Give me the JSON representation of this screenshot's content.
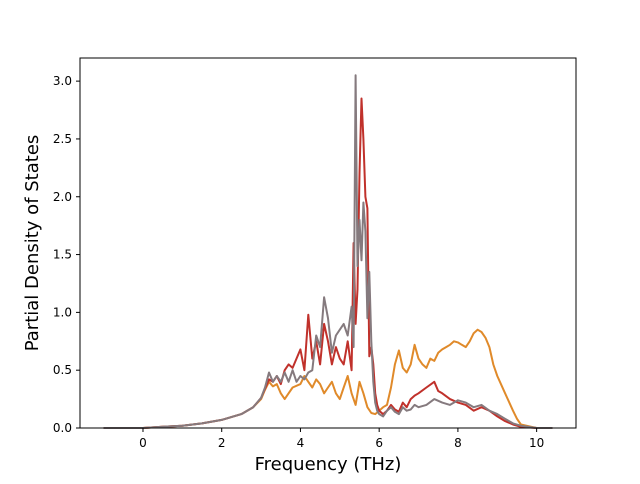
{
  "chart_data": {
    "type": "line",
    "xlabel": "Frequency (THz)",
    "ylabel": "Partial Density of States",
    "xlim": [
      -1.6,
      11.0
    ],
    "ylim": [
      0.0,
      3.2
    ],
    "xticks": [
      0,
      2,
      4,
      6,
      8,
      10
    ],
    "xtick_labels": [
      "0",
      "2",
      "4",
      "6",
      "8",
      "10"
    ],
    "yticks": [
      0.0,
      0.5,
      1.0,
      1.5,
      2.0,
      2.5,
      3.0
    ],
    "ytick_labels": [
      "0.0",
      "0.5",
      "1.0",
      "1.5",
      "2.0",
      "2.5",
      "3.0"
    ],
    "grid": false,
    "series": [
      {
        "color": "#e08a2a",
        "x": [
          -1.0,
          0.0,
          0.5,
          1.0,
          1.5,
          2.0,
          2.5,
          2.8,
          3.0,
          3.1,
          3.2,
          3.3,
          3.4,
          3.5,
          3.6,
          3.7,
          3.8,
          4.0,
          4.1,
          4.2,
          4.3,
          4.4,
          4.5,
          4.6,
          4.7,
          4.8,
          4.9,
          5.0,
          5.1,
          5.2,
          5.3,
          5.4,
          5.5,
          5.6,
          5.7,
          5.8,
          5.9,
          6.0,
          6.1,
          6.2,
          6.3,
          6.4,
          6.5,
          6.6,
          6.7,
          6.8,
          6.9,
          7.0,
          7.1,
          7.2,
          7.3,
          7.4,
          7.5,
          7.6,
          7.7,
          7.8,
          7.9,
          8.0,
          8.1,
          8.2,
          8.3,
          8.4,
          8.5,
          8.6,
          8.7,
          8.8,
          8.9,
          9.0,
          9.2,
          9.4,
          9.5,
          9.6,
          10.0,
          10.4
        ],
        "y": [
          0.0,
          0.0,
          0.01,
          0.02,
          0.04,
          0.07,
          0.12,
          0.18,
          0.25,
          0.33,
          0.4,
          0.36,
          0.38,
          0.3,
          0.25,
          0.3,
          0.35,
          0.38,
          0.45,
          0.4,
          0.35,
          0.42,
          0.38,
          0.3,
          0.35,
          0.4,
          0.3,
          0.25,
          0.35,
          0.45,
          0.3,
          0.2,
          0.4,
          0.3,
          0.18,
          0.13,
          0.12,
          0.15,
          0.18,
          0.2,
          0.35,
          0.55,
          0.67,
          0.52,
          0.48,
          0.55,
          0.72,
          0.6,
          0.55,
          0.52,
          0.6,
          0.58,
          0.65,
          0.68,
          0.7,
          0.72,
          0.75,
          0.74,
          0.72,
          0.7,
          0.75,
          0.82,
          0.85,
          0.83,
          0.78,
          0.7,
          0.55,
          0.45,
          0.3,
          0.15,
          0.08,
          0.03,
          0.0,
          0.0
        ]
      },
      {
        "color": "#c0312b",
        "x": [
          -1.0,
          0.0,
          0.5,
          1.0,
          1.5,
          2.0,
          2.5,
          2.8,
          3.0,
          3.1,
          3.2,
          3.3,
          3.4,
          3.5,
          3.6,
          3.7,
          3.8,
          3.9,
          4.0,
          4.1,
          4.2,
          4.3,
          4.4,
          4.5,
          4.6,
          4.7,
          4.8,
          4.9,
          5.0,
          5.1,
          5.2,
          5.3,
          5.35,
          5.4,
          5.45,
          5.5,
          5.55,
          5.6,
          5.65,
          5.7,
          5.75,
          5.8,
          5.85,
          5.9,
          5.95,
          6.0,
          6.1,
          6.2,
          6.3,
          6.4,
          6.5,
          6.6,
          6.7,
          6.8,
          6.9,
          7.0,
          7.2,
          7.4,
          7.5,
          7.6,
          7.8,
          8.0,
          8.2,
          8.4,
          8.6,
          8.8,
          9.0,
          9.2,
          9.4,
          9.6,
          10.0,
          10.4
        ],
        "y": [
          0.0,
          0.0,
          0.01,
          0.02,
          0.04,
          0.07,
          0.12,
          0.18,
          0.26,
          0.34,
          0.42,
          0.4,
          0.45,
          0.38,
          0.5,
          0.55,
          0.52,
          0.6,
          0.68,
          0.5,
          0.98,
          0.6,
          0.75,
          0.55,
          0.9,
          0.75,
          0.55,
          0.7,
          0.6,
          0.55,
          0.75,
          0.5,
          1.6,
          0.9,
          1.2,
          2.2,
          2.85,
          2.5,
          2.0,
          1.9,
          0.62,
          0.7,
          0.55,
          0.3,
          0.2,
          0.15,
          0.12,
          0.15,
          0.2,
          0.16,
          0.14,
          0.22,
          0.18,
          0.25,
          0.28,
          0.3,
          0.35,
          0.4,
          0.32,
          0.3,
          0.25,
          0.22,
          0.2,
          0.15,
          0.18,
          0.15,
          0.1,
          0.06,
          0.03,
          0.01,
          0.0,
          0.0
        ]
      },
      {
        "color": "#857a7e",
        "x": [
          -1.0,
          0.0,
          0.5,
          1.0,
          1.5,
          2.0,
          2.5,
          2.8,
          3.0,
          3.1,
          3.2,
          3.3,
          3.4,
          3.5,
          3.6,
          3.7,
          3.8,
          3.9,
          4.0,
          4.1,
          4.2,
          4.3,
          4.4,
          4.5,
          4.6,
          4.7,
          4.8,
          4.9,
          5.0,
          5.1,
          5.2,
          5.3,
          5.35,
          5.4,
          5.45,
          5.5,
          5.55,
          5.6,
          5.65,
          5.7,
          5.75,
          5.8,
          5.85,
          5.9,
          5.95,
          6.0,
          6.1,
          6.2,
          6.3,
          6.4,
          6.5,
          6.6,
          6.7,
          6.8,
          6.9,
          7.0,
          7.2,
          7.4,
          7.6,
          7.8,
          8.0,
          8.2,
          8.4,
          8.6,
          8.8,
          9.0,
          9.2,
          9.4,
          9.6,
          10.0,
          10.4
        ],
        "y": [
          0.0,
          0.0,
          0.01,
          0.02,
          0.04,
          0.07,
          0.12,
          0.18,
          0.26,
          0.35,
          0.48,
          0.4,
          0.45,
          0.4,
          0.48,
          0.4,
          0.5,
          0.4,
          0.45,
          0.42,
          0.48,
          0.5,
          0.8,
          0.7,
          1.13,
          0.95,
          0.65,
          0.8,
          0.85,
          0.9,
          0.8,
          1.05,
          0.7,
          3.05,
          1.4,
          1.8,
          1.45,
          1.95,
          1.7,
          0.95,
          1.35,
          0.75,
          0.4,
          0.22,
          0.15,
          0.12,
          0.1,
          0.15,
          0.18,
          0.14,
          0.12,
          0.18,
          0.15,
          0.16,
          0.2,
          0.18,
          0.2,
          0.25,
          0.22,
          0.2,
          0.24,
          0.22,
          0.18,
          0.2,
          0.15,
          0.12,
          0.08,
          0.04,
          0.02,
          0.0,
          0.0
        ]
      }
    ]
  }
}
